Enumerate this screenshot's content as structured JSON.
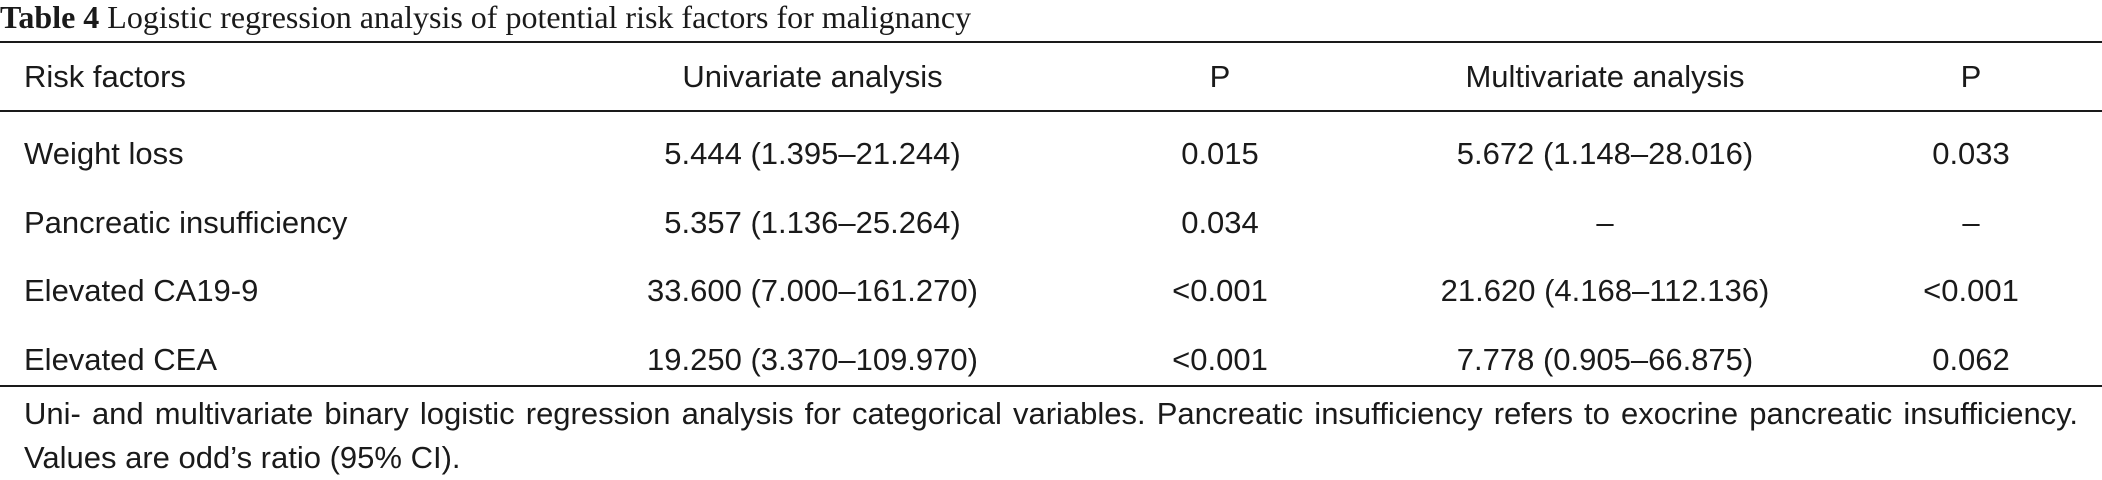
{
  "caption": {
    "label": "Table 4",
    "text": "Logistic regression analysis of potential risk factors for malignancy"
  },
  "table": {
    "headers": [
      "Risk factors",
      "Univariate analysis",
      "P",
      "Multivariate analysis",
      "P"
    ],
    "rows": [
      [
        "Weight loss",
        "5.444 (1.395–21.244)",
        "0.015",
        "5.672 (1.148–28.016)",
        "0.033"
      ],
      [
        "Pancreatic insufficiency",
        "5.357 (1.136–25.264)",
        "0.034",
        "–",
        "–"
      ],
      [
        "Elevated CA19-9",
        "33.600 (7.000–161.270)",
        "<0.001",
        "21.620 (4.168–112.136)",
        "<0.001"
      ],
      [
        "Elevated CEA",
        "19.250 (3.370–109.970)",
        "<0.001",
        "7.778 (0.905–66.875)",
        "0.062"
      ]
    ]
  },
  "footnote": "Uni- and multivariate binary logistic regression analysis for categorical variables. Pancreatic insufficiency refers to exocrine pancreatic insufficiency. Values are odd’s ratio (95% CI)."
}
